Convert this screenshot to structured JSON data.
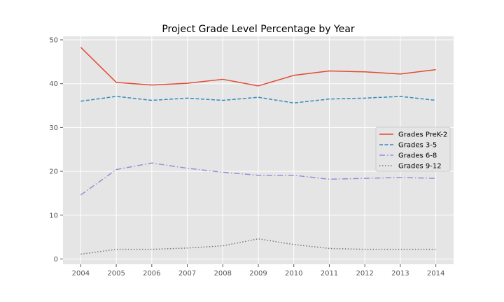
{
  "chart_data": {
    "type": "line",
    "title": "Project Grade Level Percentage by Year",
    "xlabel": "",
    "ylabel": "",
    "x": [
      2004,
      2005,
      2006,
      2007,
      2008,
      2009,
      2010,
      2011,
      2012,
      2013,
      2014
    ],
    "xlim": [
      2003.5,
      2014.5
    ],
    "ylim": [
      -1.2,
      50.8
    ],
    "yticks": [
      0,
      10,
      20,
      30,
      40,
      50
    ],
    "grid": true,
    "legend_position": "center-right",
    "series": [
      {
        "name": "Grades PreK-2",
        "color": "#E24A33",
        "dash": "solid",
        "values": [
          48.3,
          40.3,
          39.7,
          40.1,
          41.0,
          39.5,
          41.9,
          42.9,
          42.7,
          42.2,
          43.2
        ]
      },
      {
        "name": "Grades 3-5",
        "color": "#348ABD",
        "dash": "dashed",
        "values": [
          36.0,
          37.1,
          36.2,
          36.7,
          36.2,
          36.9,
          35.6,
          36.5,
          36.7,
          37.1,
          36.2
        ]
      },
      {
        "name": "Grades 6-8",
        "color": "#988ED5",
        "dash": "dashdot",
        "values": [
          14.6,
          20.4,
          21.9,
          20.7,
          19.8,
          19.1,
          19.1,
          18.2,
          18.4,
          18.6,
          18.4
        ]
      },
      {
        "name": "Grades 9-12",
        "color": "#777777",
        "dash": "dotted",
        "values": [
          1.1,
          2.2,
          2.2,
          2.5,
          3.0,
          4.6,
          3.3,
          2.4,
          2.2,
          2.2,
          2.2
        ]
      }
    ]
  }
}
